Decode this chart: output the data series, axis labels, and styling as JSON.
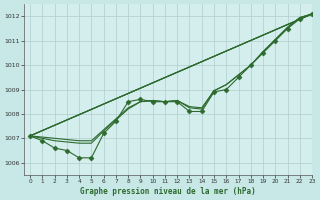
{
  "xlabel": "Graphe pression niveau de la mer (hPa)",
  "background_color": "#c8e8e8",
  "plot_bg_color": "#d4eeee",
  "grid_color": "#b0cccc",
  "line_color": "#2d6a2d",
  "xlim": [
    -0.5,
    23
  ],
  "ylim": [
    1005.5,
    1012.5
  ],
  "yticks": [
    1006,
    1007,
    1008,
    1009,
    1010,
    1011,
    1012
  ],
  "xticks": [
    0,
    1,
    2,
    3,
    4,
    5,
    6,
    7,
    8,
    9,
    10,
    11,
    12,
    13,
    14,
    15,
    16,
    17,
    18,
    19,
    20,
    21,
    22,
    23
  ],
  "straight_lines": [
    {
      "x0": 0,
      "y0": 1007.1,
      "x1": 23,
      "y1": 1012.1
    },
    {
      "x0": 0,
      "y0": 1007.1,
      "x1": 23,
      "y1": 1012.1
    },
    {
      "x0": 0,
      "y0": 1007.1,
      "x1": 23,
      "y1": 1012.1
    }
  ],
  "detail_line": {
    "x": [
      0,
      1,
      2,
      3,
      4,
      5,
      6,
      7,
      8,
      9,
      10,
      11,
      12,
      13,
      14,
      15,
      16,
      17,
      18,
      19,
      20,
      21,
      22,
      23
    ],
    "y": [
      1007.1,
      1006.9,
      1006.6,
      1006.5,
      1006.2,
      1006.2,
      1007.2,
      1007.7,
      1008.5,
      1008.6,
      1008.5,
      1008.5,
      1008.5,
      1008.1,
      1008.1,
      1008.9,
      1009.0,
      1009.5,
      1010.0,
      1010.5,
      1011.0,
      1011.5,
      1011.9,
      1012.1
    ]
  },
  "extra_lines": [
    {
      "x": [
        0,
        1,
        2,
        3,
        4,
        5,
        6,
        7,
        8,
        9,
        10,
        11,
        12,
        13,
        14,
        15,
        16,
        17,
        18,
        19,
        20,
        21,
        22,
        23
      ],
      "y": [
        1007.1,
        1007.05,
        1007.0,
        1006.95,
        1006.9,
        1006.9,
        1007.35,
        1007.8,
        1008.25,
        1008.5,
        1008.55,
        1008.5,
        1008.55,
        1008.3,
        1008.25,
        1008.95,
        1009.2,
        1009.6,
        1010.0,
        1010.55,
        1011.05,
        1011.55,
        1011.95,
        1012.1
      ]
    },
    {
      "x": [
        0,
        1,
        2,
        3,
        4,
        5,
        6,
        7,
        8,
        9,
        10,
        11,
        12,
        13,
        14,
        15,
        16,
        17,
        18,
        19,
        20,
        21,
        22,
        23
      ],
      "y": [
        1007.1,
        1007.0,
        1006.9,
        1006.85,
        1006.8,
        1006.8,
        1007.3,
        1007.75,
        1008.2,
        1008.5,
        1008.55,
        1008.5,
        1008.55,
        1008.25,
        1008.2,
        1008.95,
        1009.2,
        1009.6,
        1010.0,
        1010.55,
        1011.05,
        1011.55,
        1011.95,
        1012.1
      ]
    }
  ]
}
